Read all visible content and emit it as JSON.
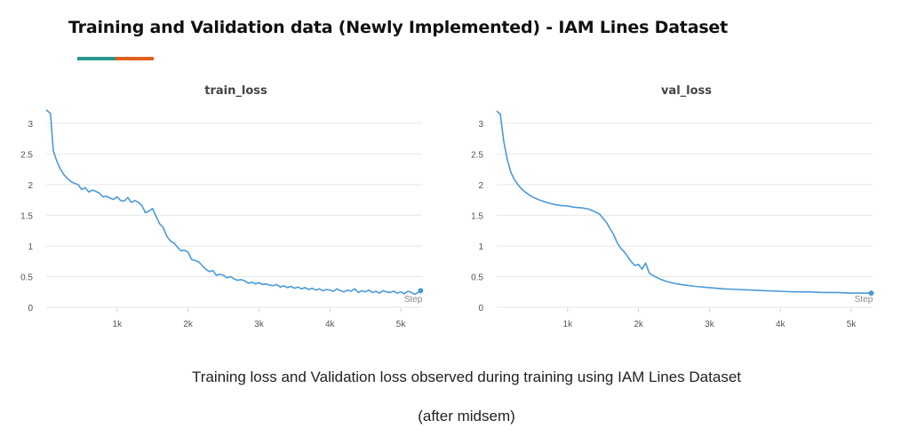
{
  "header": {
    "title": "Training and Validation data (Newly Implemented) - IAM Lines Dataset",
    "accent_colors": [
      "#26998b",
      "#e0611e"
    ]
  },
  "caption": {
    "line1": "Training loss and Validation loss observed during training using IAM Lines Dataset",
    "line2": "(after midsem)"
  },
  "colors": {
    "line": "#4a9ad6",
    "grid": "#e6e6e6",
    "tick_text": "#555555"
  },
  "chart_data": [
    {
      "type": "line",
      "title": "train_loss",
      "xlabel": "Step",
      "ylabel": "",
      "xlim": [
        0,
        5300
      ],
      "ylim": [
        0,
        3.2
      ],
      "x_ticks": [
        1000,
        2000,
        3000,
        4000,
        5000
      ],
      "x_tick_labels": [
        "1k",
        "2k",
        "3k",
        "4k",
        "5k"
      ],
      "y_ticks": [
        0,
        0.5,
        1,
        1.5,
        2,
        2.5,
        3
      ],
      "y_tick_labels": [
        "0",
        "0.5",
        "1",
        "1.5",
        "2",
        "2.5",
        "3"
      ],
      "grid": true,
      "series": [
        {
          "x": [
            0,
            60,
            100,
            150,
            200,
            250,
            300,
            350,
            400,
            450,
            500,
            550,
            600,
            650,
            700,
            750,
            800,
            850,
            900,
            950,
            1000,
            1050,
            1100,
            1150,
            1200,
            1250,
            1300,
            1350,
            1400,
            1450,
            1500,
            1550,
            1600,
            1650,
            1700,
            1750,
            1800,
            1850,
            1900,
            1950,
            2000,
            2050,
            2100,
            2150,
            2200,
            2250,
            2300,
            2350,
            2400,
            2450,
            2500,
            2550,
            2600,
            2650,
            2700,
            2750,
            2800,
            2850,
            2900,
            2950,
            3000,
            3050,
            3100,
            3150,
            3200,
            3250,
            3300,
            3350,
            3400,
            3450,
            3500,
            3550,
            3600,
            3650,
            3700,
            3750,
            3800,
            3850,
            3900,
            3950,
            4000,
            4050,
            4100,
            4150,
            4200,
            4250,
            4300,
            4350,
            4400,
            4450,
            4500,
            4550,
            4600,
            4650,
            4700,
            4750,
            4800,
            4850,
            4900,
            4950,
            5000,
            5050,
            5100,
            5150,
            5200,
            5280
          ],
          "y": [
            3.22,
            3.16,
            2.55,
            2.38,
            2.25,
            2.16,
            2.1,
            2.05,
            2.02,
            2.0,
            1.92,
            1.95,
            1.88,
            1.91,
            1.89,
            1.86,
            1.8,
            1.81,
            1.78,
            1.76,
            1.8,
            1.74,
            1.73,
            1.79,
            1.71,
            1.74,
            1.71,
            1.66,
            1.54,
            1.57,
            1.61,
            1.48,
            1.36,
            1.3,
            1.16,
            1.08,
            1.05,
            0.98,
            0.92,
            0.93,
            0.9,
            0.78,
            0.76,
            0.74,
            0.68,
            0.62,
            0.58,
            0.6,
            0.52,
            0.54,
            0.52,
            0.48,
            0.5,
            0.46,
            0.44,
            0.45,
            0.43,
            0.39,
            0.41,
            0.38,
            0.4,
            0.37,
            0.38,
            0.36,
            0.35,
            0.37,
            0.33,
            0.35,
            0.32,
            0.34,
            0.31,
            0.33,
            0.3,
            0.32,
            0.29,
            0.31,
            0.28,
            0.3,
            0.27,
            0.29,
            0.28,
            0.26,
            0.3,
            0.27,
            0.25,
            0.28,
            0.26,
            0.3,
            0.24,
            0.27,
            0.25,
            0.28,
            0.24,
            0.26,
            0.23,
            0.27,
            0.25,
            0.24,
            0.26,
            0.23,
            0.25,
            0.22,
            0.26,
            0.24,
            0.21,
            0.27
          ]
        }
      ]
    },
    {
      "type": "line",
      "title": "val_loss",
      "xlabel": "Step",
      "ylabel": "",
      "xlim": [
        0,
        5300
      ],
      "ylim": [
        0,
        3.2
      ],
      "x_ticks": [
        1000,
        2000,
        3000,
        4000,
        5000
      ],
      "x_tick_labels": [
        "1k",
        "2k",
        "3k",
        "4k",
        "5k"
      ],
      "y_ticks": [
        0,
        0.5,
        1,
        1.5,
        2,
        2.5,
        3
      ],
      "y_tick_labels": [
        "0",
        "0.5",
        "1",
        "1.5",
        "2",
        "2.5",
        "3"
      ],
      "grid": true,
      "series": [
        {
          "x": [
            0,
            50,
            100,
            150,
            200,
            250,
            300,
            350,
            400,
            500,
            600,
            700,
            800,
            900,
            1000,
            1100,
            1200,
            1300,
            1400,
            1450,
            1500,
            1550,
            1600,
            1650,
            1700,
            1750,
            1800,
            1850,
            1900,
            1950,
            2000,
            2050,
            2100,
            2150,
            2200,
            2300,
            2400,
            2500,
            2600,
            2800,
            3000,
            3200,
            3400,
            3600,
            3800,
            4000,
            4200,
            4400,
            4600,
            4800,
            5000,
            5200,
            5280
          ],
          "y": [
            3.2,
            3.15,
            2.7,
            2.4,
            2.2,
            2.08,
            2.0,
            1.93,
            1.88,
            1.8,
            1.75,
            1.71,
            1.68,
            1.66,
            1.65,
            1.63,
            1.62,
            1.6,
            1.55,
            1.52,
            1.45,
            1.38,
            1.28,
            1.18,
            1.05,
            0.96,
            0.9,
            0.82,
            0.74,
            0.68,
            0.7,
            0.62,
            0.72,
            0.56,
            0.52,
            0.46,
            0.42,
            0.39,
            0.37,
            0.34,
            0.32,
            0.3,
            0.29,
            0.28,
            0.27,
            0.26,
            0.25,
            0.25,
            0.24,
            0.24,
            0.23,
            0.23,
            0.23
          ]
        }
      ]
    }
  ]
}
